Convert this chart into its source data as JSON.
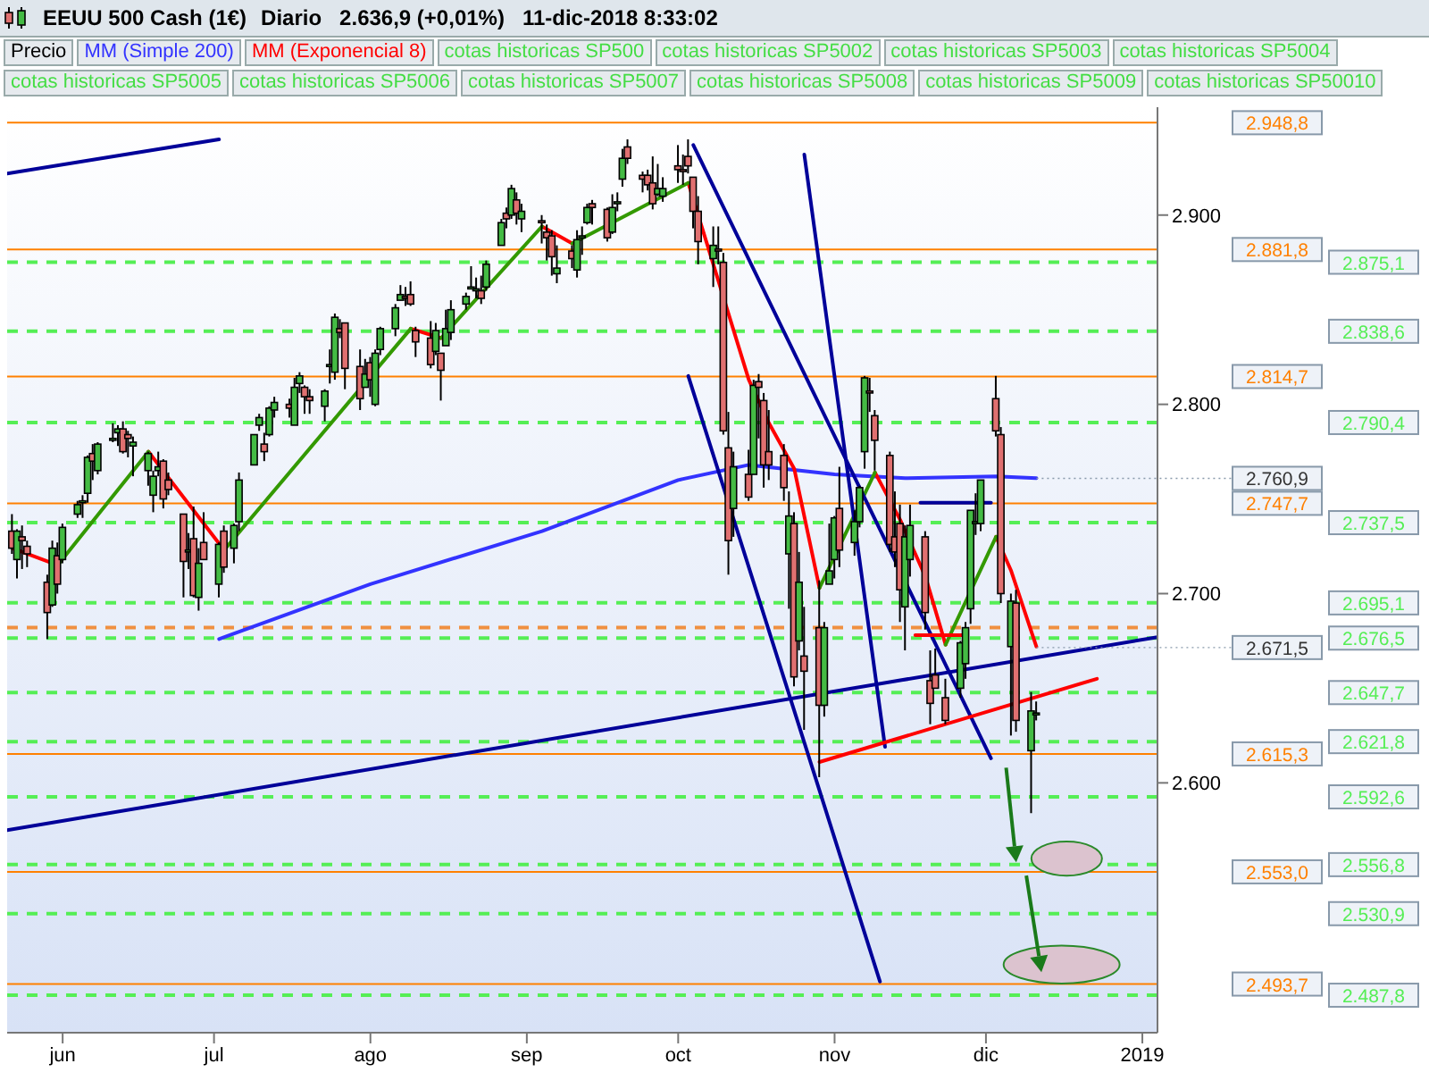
{
  "chart_data": {
    "type": "candlestick",
    "title": "EEUU 500 Cash (1€)",
    "subtitle": "Diario   2.636,9 (+0,01%)   11-dic-2018 8:33:02",
    "legend": "top",
    "xlim": [
      "2018-05-21",
      "2019-01-04"
    ],
    "xticks": [
      {
        "value": "2018-06-01",
        "label": "jun"
      },
      {
        "value": "2018-07-01",
        "label": "jul"
      },
      {
        "value": "2018-08-01",
        "label": "ago"
      },
      {
        "value": "2018-09-01",
        "label": "sep"
      },
      {
        "value": "2018-10-01",
        "label": "oct"
      },
      {
        "value": "2018-11-01",
        "label": "nov"
      },
      {
        "value": "2018-12-01",
        "label": "dic"
      },
      {
        "value": "2019-01-01",
        "label": "2019"
      }
    ],
    "ylim": [
      2468,
      2957
    ],
    "yticks": [
      {
        "value": 2600,
        "label": "2.600"
      },
      {
        "value": 2700,
        "label": "2.700"
      },
      {
        "value": 2800,
        "label": "2.800"
      },
      {
        "value": 2900,
        "label": "2.900"
      }
    ],
    "series": [
      {
        "type": "candlestick",
        "name": "Precio",
        "x": [
          "2018-05-22",
          "2018-05-23",
          "2018-05-24",
          "2018-05-25",
          "2018-05-29",
          "2018-05-30",
          "2018-05-31",
          "2018-06-01",
          "2018-06-04",
          "2018-06-05",
          "2018-06-06",
          "2018-06-07",
          "2018-06-08",
          "2018-06-11",
          "2018-06-12",
          "2018-06-13",
          "2018-06-14",
          "2018-06-15",
          "2018-06-18",
          "2018-06-19",
          "2018-06-20",
          "2018-06-21",
          "2018-06-22",
          "2018-06-25",
          "2018-06-26",
          "2018-06-27",
          "2018-06-28",
          "2018-06-29",
          "2018-07-02",
          "2018-07-03",
          "2018-07-05",
          "2018-07-06",
          "2018-07-09",
          "2018-07-10",
          "2018-07-11",
          "2018-07-12",
          "2018-07-13",
          "2018-07-16",
          "2018-07-17",
          "2018-07-18",
          "2018-07-19",
          "2018-07-20",
          "2018-07-23",
          "2018-07-24",
          "2018-07-25",
          "2018-07-26",
          "2018-07-27",
          "2018-07-30",
          "2018-07-31",
          "2018-08-01",
          "2018-08-02",
          "2018-08-03",
          "2018-08-06",
          "2018-08-07",
          "2018-08-08",
          "2018-08-09",
          "2018-08-10",
          "2018-08-13",
          "2018-08-14",
          "2018-08-15",
          "2018-08-16",
          "2018-08-17",
          "2018-08-20",
          "2018-08-21",
          "2018-08-22",
          "2018-08-23",
          "2018-08-24",
          "2018-08-27",
          "2018-08-28",
          "2018-08-29",
          "2018-08-30",
          "2018-08-31",
          "2018-09-04",
          "2018-09-05",
          "2018-09-06",
          "2018-09-07",
          "2018-09-10",
          "2018-09-11",
          "2018-09-12",
          "2018-09-13",
          "2018-09-14",
          "2018-09-17",
          "2018-09-18",
          "2018-09-19",
          "2018-09-20",
          "2018-09-21",
          "2018-09-24",
          "2018-09-25",
          "2018-09-26",
          "2018-09-27",
          "2018-09-28",
          "2018-10-01",
          "2018-10-02",
          "2018-10-03",
          "2018-10-04",
          "2018-10-05",
          "2018-10-08",
          "2018-10-09",
          "2018-10-10",
          "2018-10-11",
          "2018-10-12",
          "2018-10-15",
          "2018-10-16",
          "2018-10-17",
          "2018-10-18",
          "2018-10-19",
          "2018-10-22",
          "2018-10-23",
          "2018-10-24",
          "2018-10-25",
          "2018-10-26",
          "2018-10-29",
          "2018-10-30",
          "2018-10-31",
          "2018-11-01",
          "2018-11-02",
          "2018-11-05",
          "2018-11-06",
          "2018-11-07",
          "2018-11-08",
          "2018-11-09",
          "2018-11-12",
          "2018-11-13",
          "2018-11-14",
          "2018-11-15",
          "2018-11-16",
          "2018-11-19",
          "2018-11-20",
          "2018-11-21",
          "2018-11-23",
          "2018-11-26",
          "2018-11-27",
          "2018-11-28",
          "2018-11-29",
          "2018-11-30",
          "2018-12-03",
          "2018-12-04",
          "2018-12-06",
          "2018-12-07",
          "2018-12-10",
          "2018-12-11"
        ],
        "ohlc": [
          [
            2733,
            2742,
            2721,
            2724
          ],
          [
            2718,
            2734,
            2708,
            2733
          ],
          [
            2730,
            2736,
            2713,
            2728
          ],
          [
            2725,
            2728,
            2714,
            2721
          ],
          [
            2706,
            2710,
            2676,
            2690
          ],
          [
            2694,
            2728,
            2693,
            2724
          ],
          [
            2720,
            2727,
            2700,
            2705
          ],
          [
            2718,
            2737,
            2716,
            2735
          ],
          [
            2742,
            2749,
            2740,
            2747
          ],
          [
            2748,
            2752,
            2740,
            2749
          ],
          [
            2753,
            2773,
            2748,
            2772
          ],
          [
            2774,
            2779,
            2760,
            2770
          ],
          [
            2765,
            2780,
            2763,
            2779
          ],
          [
            2781,
            2790,
            2780,
            2782
          ],
          [
            2785,
            2789,
            2778,
            2787
          ],
          [
            2787,
            2791,
            2774,
            2775
          ],
          [
            2784,
            2786,
            2772,
            2782
          ],
          [
            2778,
            2783,
            2762,
            2780
          ],
          [
            2765,
            2775,
            2757,
            2774
          ],
          [
            2752,
            2765,
            2743,
            2762
          ],
          [
            2765,
            2775,
            2762,
            2767
          ],
          [
            2770,
            2771,
            2745,
            2750
          ],
          [
            2760,
            2764,
            2752,
            2755
          ],
          [
            2742,
            2742,
            2698,
            2717
          ],
          [
            2722,
            2732,
            2713,
            2723
          ],
          [
            2729,
            2746,
            2698,
            2699
          ],
          [
            2698,
            2724,
            2691,
            2716
          ],
          [
            2727,
            2743,
            2718,
            2718
          ],
          [
            2705,
            2727,
            2698,
            2726
          ],
          [
            2733,
            2736,
            2711,
            2714
          ],
          [
            2724,
            2737,
            2716,
            2736
          ],
          [
            2738,
            2764,
            2733,
            2760
          ],
          [
            2768,
            2784,
            2768,
            2784
          ],
          [
            2789,
            2795,
            2786,
            2793
          ],
          [
            2779,
            2785,
            2770,
            2775
          ],
          [
            2784,
            2799,
            2783,
            2798
          ],
          [
            2797,
            2804,
            2793,
            2801
          ],
          [
            2800,
            2803,
            2793,
            2798
          ],
          [
            2789,
            2814,
            2789,
            2809
          ],
          [
            2811,
            2817,
            2806,
            2815
          ],
          [
            2809,
            2810,
            2795,
            2804
          ],
          [
            2804,
            2808,
            2795,
            2802
          ],
          [
            2799,
            2808,
            2791,
            2807
          ],
          [
            2820,
            2829,
            2811,
            2821
          ],
          [
            2817,
            2848,
            2813,
            2846
          ],
          [
            2840,
            2845,
            2835,
            2838
          ],
          [
            2843,
            2843,
            2808,
            2819
          ],
          [
            2820,
            2829,
            2797,
            2803
          ],
          [
            2809,
            2824,
            2809,
            2816
          ],
          [
            2822,
            2825,
            2804,
            2813
          ],
          [
            2800,
            2829,
            2799,
            2827
          ],
          [
            2829,
            2841,
            2826,
            2840
          ],
          [
            2840,
            2853,
            2836,
            2851
          ],
          [
            2855,
            2863,
            2855,
            2858
          ],
          [
            2857,
            2862,
            2852,
            2856
          ],
          [
            2858,
            2865,
            2852,
            2853
          ],
          [
            2839,
            2841,
            2825,
            2833
          ],
          [
            2835,
            2844,
            2819,
            2821
          ],
          [
            2828,
            2843,
            2826,
            2839
          ],
          [
            2827,
            2827,
            2802,
            2818
          ],
          [
            2831,
            2850,
            2831,
            2840
          ],
          [
            2838,
            2855,
            2834,
            2850
          ],
          [
            2853,
            2859,
            2850,
            2857
          ],
          [
            2861,
            2873,
            2861,
            2862
          ],
          [
            2860,
            2867,
            2856,
            2861
          ],
          [
            2860,
            2868,
            2853,
            2856
          ],
          [
            2862,
            2876,
            2860,
            2874
          ],
          [
            2884,
            2898,
            2884,
            2896
          ],
          [
            2901,
            2904,
            2893,
            2898
          ],
          [
            2900,
            2916,
            2898,
            2914
          ],
          [
            2908,
            2912,
            2895,
            2901
          ],
          [
            2898,
            2906,
            2891,
            2902
          ],
          [
            2897,
            2900,
            2885,
            2896
          ],
          [
            2891,
            2895,
            2876,
            2888
          ],
          [
            2889,
            2892,
            2868,
            2878
          ],
          [
            2869,
            2884,
            2864,
            2872
          ],
          [
            2881,
            2884,
            2872,
            2877
          ],
          [
            2871,
            2892,
            2867,
            2887
          ],
          [
            2888,
            2894,
            2879,
            2889
          ],
          [
            2896,
            2906,
            2895,
            2904
          ],
          [
            2906,
            2908,
            2895,
            2904
          ],
          [
            2903,
            2904,
            2886,
            2888
          ],
          [
            2891,
            2911,
            2890,
            2904
          ],
          [
            2906,
            2912,
            2902,
            2907
          ],
          [
            2919,
            2935,
            2915,
            2930
          ],
          [
            2936,
            2940,
            2927,
            2930
          ],
          [
            2921,
            2923,
            2912,
            2919
          ],
          [
            2921,
            2924,
            2913,
            2916
          ],
          [
            2917,
            2931,
            2903,
            2906
          ],
          [
            2911,
            2927,
            2910,
            2914
          ],
          [
            2910,
            2920,
            2907,
            2914
          ],
          [
            2926,
            2937,
            2917,
            2924
          ],
          [
            2924,
            2932,
            2916,
            2923
          ],
          [
            2931,
            2940,
            2922,
            2926
          ],
          [
            2920,
            2920,
            2893,
            2902
          ],
          [
            2902,
            2910,
            2874,
            2886
          ],
          [
            2877,
            2894,
            2862,
            2884
          ],
          [
            2882,
            2894,
            2874,
            2881
          ],
          [
            2875,
            2880,
            2784,
            2786
          ],
          [
            2777,
            2796,
            2710,
            2728
          ],
          [
            2745,
            2775,
            2730,
            2767
          ],
          [
            2763,
            2776,
            2749,
            2751
          ],
          [
            2763,
            2813,
            2763,
            2810
          ],
          [
            2812,
            2816,
            2782,
            2809
          ],
          [
            2802,
            2806,
            2756,
            2768
          ],
          [
            2775,
            2797,
            2760,
            2768
          ],
          [
            2773,
            2779,
            2749,
            2756
          ],
          [
            2721,
            2754,
            2692,
            2741
          ],
          [
            2737,
            2743,
            2651,
            2656
          ],
          [
            2675,
            2722,
            2670,
            2706
          ],
          [
            2667,
            2693,
            2628,
            2659
          ],
          [
            2682,
            2707,
            2603,
            2641
          ],
          [
            2641,
            2685,
            2635,
            2682
          ],
          [
            2705,
            2737,
            2705,
            2712
          ],
          [
            2718,
            2741,
            2708,
            2740
          ],
          [
            2745,
            2767,
            2714,
            2723
          ],
          [
            2727,
            2744,
            2720,
            2738
          ],
          [
            2738,
            2757,
            2735,
            2756
          ],
          [
            2775,
            2815,
            2766,
            2814
          ],
          [
            2807,
            2814,
            2796,
            2806
          ],
          [
            2794,
            2797,
            2765,
            2781
          ],
          [
            2773,
            2775,
            2722,
            2726
          ],
          [
            2730,
            2754,
            2714,
            2722
          ],
          [
            2737,
            2747,
            2685,
            2702
          ],
          [
            2693,
            2736,
            2670,
            2730
          ],
          [
            2718,
            2747,
            2709,
            2736
          ],
          [
            2730,
            2733,
            2681,
            2690
          ],
          [
            2654,
            2670,
            2631,
            2642
          ],
          [
            2657,
            2671,
            2650,
            2650
          ],
          [
            2645,
            2655,
            2631,
            2633
          ],
          [
            2650,
            2675,
            2645,
            2674
          ],
          [
            2663,
            2685,
            2655,
            2682
          ],
          [
            2692,
            2744,
            2684,
            2744
          ],
          [
            2737,
            2753,
            2731,
            2738
          ],
          [
            2737,
            2760,
            2733,
            2760
          ],
          [
            2803,
            2815,
            2783,
            2786
          ],
          [
            2784,
            2788,
            2695,
            2700
          ],
          [
            2672,
            2700,
            2625,
            2696
          ],
          [
            2695,
            2702,
            2627,
            2633
          ],
          [
            2617,
            2648,
            2584,
            2638
          ],
          [
            2636.5,
            2643,
            2633,
            2636.9
          ]
        ],
        "colors": [
          "#e07070",
          "#44bb44",
          "#e07070",
          "#e07070",
          "#e07070",
          "#44bb44",
          "#e07070",
          "#44bb44",
          "#44bb44",
          "#44bb44",
          "#44bb44",
          "#e07070",
          "#44bb44",
          "#44bb44",
          "#44bb44",
          "#e07070",
          "#e07070",
          "#44bb44",
          "#44bb44",
          "#44bb44",
          "#44bb44",
          "#e07070",
          "#e07070",
          "#e07070",
          "#44bb44",
          "#e07070",
          "#44bb44",
          "#e07070",
          "#44bb44",
          "#e07070",
          "#44bb44",
          "#44bb44",
          "#44bb44",
          "#44bb44",
          "#e07070",
          "#44bb44",
          "#44bb44",
          "#e07070",
          "#44bb44",
          "#44bb44",
          "#e07070",
          "#e07070",
          "#44bb44",
          "#44bb44",
          "#44bb44",
          "#e07070",
          "#e07070",
          "#e07070",
          "#44bb44",
          "#e07070",
          "#44bb44",
          "#44bb44",
          "#44bb44",
          "#44bb44",
          "#e07070",
          "#e07070",
          "#e07070",
          "#e07070",
          "#44bb44",
          "#e07070",
          "#44bb44",
          "#44bb44",
          "#44bb44",
          "#44bb44",
          "#44bb44",
          "#e07070",
          "#44bb44",
          "#44bb44",
          "#e07070",
          "#44bb44",
          "#e07070",
          "#44bb44",
          "#e07070",
          "#e07070",
          "#e07070",
          "#44bb44",
          "#e07070",
          "#44bb44",
          "#44bb44",
          "#44bb44",
          "#e07070",
          "#e07070",
          "#44bb44",
          "#44bb44",
          "#44bb44",
          "#e07070",
          "#e07070",
          "#e07070",
          "#e07070",
          "#44bb44",
          "#44bb44",
          "#e07070",
          "#e07070",
          "#e07070",
          "#e07070",
          "#e07070",
          "#44bb44",
          "#e07070",
          "#e07070",
          "#e07070",
          "#44bb44",
          "#e07070",
          "#44bb44",
          "#e07070",
          "#e07070",
          "#e07070",
          "#e07070",
          "#44bb44",
          "#e07070",
          "#44bb44",
          "#e07070",
          "#e07070",
          "#44bb44",
          "#44bb44",
          "#44bb44",
          "#e07070",
          "#44bb44",
          "#44bb44",
          "#44bb44",
          "#e07070",
          "#e07070",
          "#e07070",
          "#e07070",
          "#e07070",
          "#44bb44",
          "#44bb44",
          "#e07070",
          "#e07070",
          "#e07070",
          "#e07070",
          "#44bb44",
          "#44bb44",
          "#44bb44",
          "#44bb44",
          "#44bb44",
          "#e07070",
          "#e07070",
          "#44bb44",
          "#e07070",
          "#44bb44",
          "#44bb44"
        ]
      },
      {
        "type": "line",
        "name": "MM (Simple 200)",
        "color": "#3333ff",
        "x": [
          "2018-07-02",
          "2018-08-01",
          "2018-09-04",
          "2018-10-01",
          "2018-10-15",
          "2018-11-01",
          "2018-11-15",
          "2018-12-03",
          "2018-12-11"
        ],
        "values": [
          2676,
          2705,
          2733,
          2760,
          2768,
          2763,
          2761,
          2762,
          2761
        ]
      },
      {
        "type": "line",
        "name": "MM (Exponencial 8)",
        "color": "#ff0000",
        "x": [
          "2018-05-22",
          "2018-05-31",
          "2018-06-08",
          "2018-06-18",
          "2018-07-03",
          "2018-07-20",
          "2018-08-09",
          "2018-08-15",
          "2018-08-24",
          "2018-09-04",
          "2018-09-10",
          "2018-09-20",
          "2018-10-03",
          "2018-10-15",
          "2018-10-19",
          "2018-10-24",
          "2018-10-29",
          "2018-11-05",
          "2018-11-09",
          "2018-11-14",
          "2018-11-19",
          "2018-11-23",
          "2018-11-28",
          "2018-12-03",
          "2018-12-06",
          "2018-12-11"
        ],
        "values": [
          2724,
          2715,
          null,
          2775,
          2723,
          null,
          2840,
          2835,
          null,
          2894,
          2885,
          null,
          2917,
          2813,
          2790,
          2766,
          2703,
          null,
          2764,
          2739,
          2709,
          2673,
          null,
          2730,
          2712,
          2672
        ]
      },
      {
        "type": "line",
        "color": "#339900",
        "x": [
          "2018-05-31",
          "2018-06-18",
          "2018-06-25",
          "2018-07-03",
          "2018-08-09",
          "2018-08-12",
          "2018-08-15",
          "2018-09-04",
          "2018-09-07",
          "2018-09-10",
          "2018-10-03",
          "2018-10-10",
          "2018-10-29",
          "2018-11-09",
          "2018-11-16",
          "2018-11-23",
          "2018-12-03"
        ],
        "values": [
          2715,
          2775,
          null,
          2723,
          2840,
          null,
          2835,
          2894,
          null,
          2885,
          2917,
          null,
          2703,
          2764,
          null,
          2673,
          2730
        ]
      },
      {
        "type": "line",
        "color": "#000099",
        "x": [
          "2018-05-21",
          "2018-07-02"
        ],
        "values": [
          2922,
          2940
        ]
      },
      {
        "type": "line",
        "color": "#000099",
        "x": [
          "2018-05-21",
          "2019-01-04"
        ],
        "values": [
          2575,
          2677
        ]
      },
      {
        "type": "line",
        "color": "#000099",
        "x": [
          "2018-10-03",
          "2018-11-10"
        ],
        "values": [
          2815,
          2495
        ]
      },
      {
        "type": "line",
        "color": "#000099",
        "x": [
          "2018-10-04",
          "2018-12-02"
        ],
        "values": [
          2937,
          2613
        ]
      },
      {
        "type": "line",
        "color": "#000099",
        "x": [
          "2018-10-26",
          "2018-11-11"
        ],
        "values": [
          2932,
          2619
        ]
      },
      {
        "type": "line",
        "color": "#000099",
        "x": [
          "2018-11-18",
          "2018-12-02"
        ],
        "values": [
          2748,
          2748
        ]
      },
      {
        "type": "line",
        "color": "#ff0000",
        "x": [
          "2018-10-29",
          "2018-12-23"
        ],
        "values": [
          2611,
          2655
        ]
      },
      {
        "type": "line",
        "color": "#ff0000",
        "x": [
          "2018-11-17",
          "2018-11-27"
        ],
        "values": [
          2678,
          2678
        ]
      }
    ],
    "ref_lines": [
      {
        "axis": "y",
        "value": 2948.8,
        "label": "2.948,8",
        "color": "#ff8000"
      },
      {
        "axis": "y",
        "value": 2881.8,
        "label": "2.881,8",
        "color": "#ff8000"
      },
      {
        "axis": "y",
        "value": 2814.7,
        "label": "2.814,7",
        "color": "#ff8000"
      },
      {
        "axis": "y",
        "value": 2747.7,
        "label": "2.747,7",
        "color": "#ff8000"
      },
      {
        "axis": "y",
        "value": 2615.3,
        "label": "2.615,3",
        "color": "#ff8000"
      },
      {
        "axis": "y",
        "value": 2553.0,
        "label": "2.553,0",
        "color": "#ff8000"
      },
      {
        "axis": "y",
        "value": 2493.7,
        "label": "2.493,7",
        "color": "#ff8000"
      },
      {
        "axis": "y",
        "value": 2682,
        "label": null,
        "color": "#f09040",
        "line_style": "dashed"
      },
      {
        "axis": "y",
        "value": 2875.1,
        "label": "2.875,1",
        "color": "#55ee55",
        "line_style": "dashed"
      },
      {
        "axis": "y",
        "value": 2838.6,
        "label": "2.838,6",
        "color": "#55ee55",
        "line_style": "dashed"
      },
      {
        "axis": "y",
        "value": 2790.4,
        "label": "2.790,4",
        "color": "#55ee55",
        "line_style": "dashed"
      },
      {
        "axis": "y",
        "value": 2737.5,
        "label": "2.737,5",
        "color": "#55ee55",
        "line_style": "dashed"
      },
      {
        "axis": "y",
        "value": 2695.1,
        "label": "2.695,1",
        "color": "#55ee55",
        "line_style": "dashed"
      },
      {
        "axis": "y",
        "value": 2676.5,
        "label": "2.676,5",
        "color": "#55ee55",
        "line_style": "dashed"
      },
      {
        "axis": "y",
        "value": 2647.7,
        "label": "2.647,7",
        "color": "#55ee55",
        "line_style": "dashed"
      },
      {
        "axis": "y",
        "value": 2621.8,
        "label": "2.621,8",
        "color": "#55ee55",
        "line_style": "dashed"
      },
      {
        "axis": "y",
        "value": 2592.6,
        "label": "2.592,6",
        "color": "#55ee55",
        "line_style": "dashed"
      },
      {
        "axis": "y",
        "value": 2556.8,
        "label": "2.556,8",
        "color": "#55ee55",
        "line_style": "dashed"
      },
      {
        "axis": "y",
        "value": 2530.9,
        "label": "2.530,9",
        "color": "#55ee55",
        "line_style": "dashed"
      },
      {
        "axis": "y",
        "value": 2487.8,
        "label": "2.487,8",
        "color": "#55ee55",
        "line_style": "dashed"
      }
    ],
    "annotations": [
      "cotas historicas SP500",
      "cotas historicas SP5002",
      "cotas historicas SP5003",
      "cotas historicas SP5004",
      "cotas historicas SP5005",
      "cotas historicas SP5006",
      "cotas historicas SP5007",
      "cotas historicas SP5008",
      "cotas historicas SP5009",
      "cotas historicas SP50010",
      {
        "text": "2.760,9",
        "x": "2018-12-11",
        "y": 2760.9
      },
      {
        "text": "2.671,5",
        "x": "2018-12-11",
        "y": 2671.5
      }
    ]
  }
}
